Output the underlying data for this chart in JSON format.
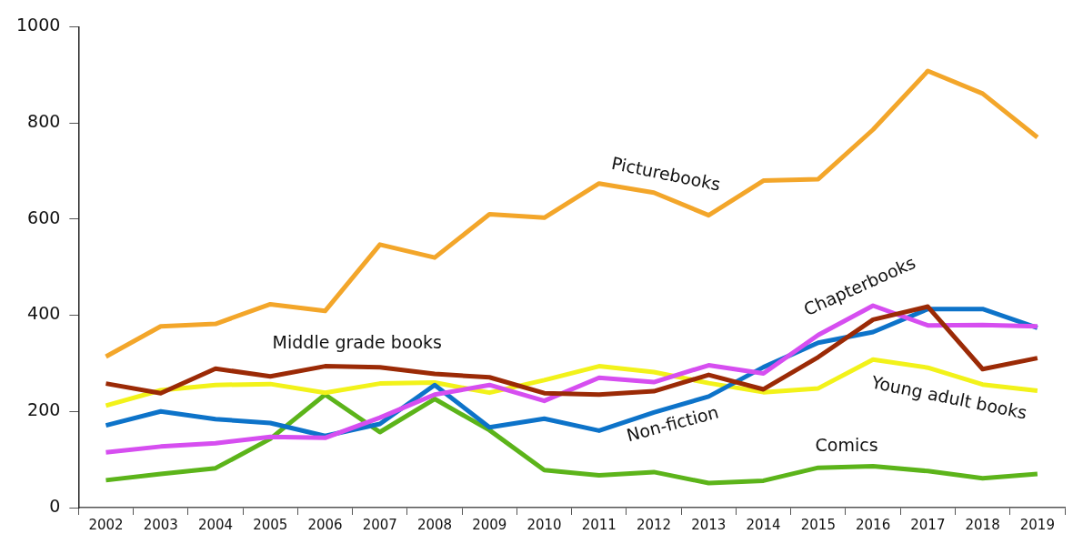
{
  "chart_data": {
    "type": "line",
    "categories": [
      "2002",
      "2003",
      "2004",
      "2005",
      "2006",
      "2007",
      "2008",
      "2009",
      "2010",
      "2011",
      "2012",
      "2013",
      "2014",
      "2015",
      "2016",
      "2017",
      "2018",
      "2019"
    ],
    "series": [
      {
        "name": "Picturebooks",
        "color": "#f3a62a",
        "values": [
          314,
          377,
          382,
          423,
          409,
          547,
          520,
          610,
          603,
          674,
          655,
          608,
          680,
          683,
          786,
          908,
          861,
          770
        ]
      },
      {
        "name": "Middle grade books",
        "color": "#9b2a06",
        "values": [
          258,
          238,
          289,
          273,
          294,
          292,
          278,
          271,
          238,
          235,
          242,
          276,
          246,
          313,
          391,
          418,
          288,
          311
        ]
      },
      {
        "name": "Chapterbooks",
        "color": "#d64ef0",
        "values": [
          115,
          127,
          134,
          147,
          145,
          187,
          235,
          255,
          222,
          270,
          261,
          296,
          279,
          359,
          420,
          379,
          380,
          377
        ]
      },
      {
        "name": "Non-fiction",
        "color": "#0d73c9",
        "values": [
          171,
          200,
          184,
          176,
          149,
          174,
          255,
          167,
          185,
          160,
          198,
          231,
          292,
          343,
          365,
          413,
          413,
          374
        ]
      },
      {
        "name": "Young adult books",
        "color": "#f2f21a",
        "values": [
          212,
          244,
          255,
          257,
          239,
          258,
          260,
          239,
          265,
          294,
          282,
          259,
          240,
          248,
          308,
          291,
          256,
          243
        ]
      },
      {
        "name": "Comics",
        "color": "#5cb41a",
        "values": [
          57,
          70,
          82,
          143,
          235,
          157,
          226,
          161,
          78,
          67,
          74,
          51,
          56,
          83,
          86,
          76,
          61,
          70
        ]
      }
    ],
    "ylim": [
      0,
      1000
    ],
    "yticks": [
      0,
      200,
      400,
      600,
      800,
      1000
    ],
    "grid": false,
    "legend": false,
    "marker": "none",
    "line_style": "solid"
  }
}
